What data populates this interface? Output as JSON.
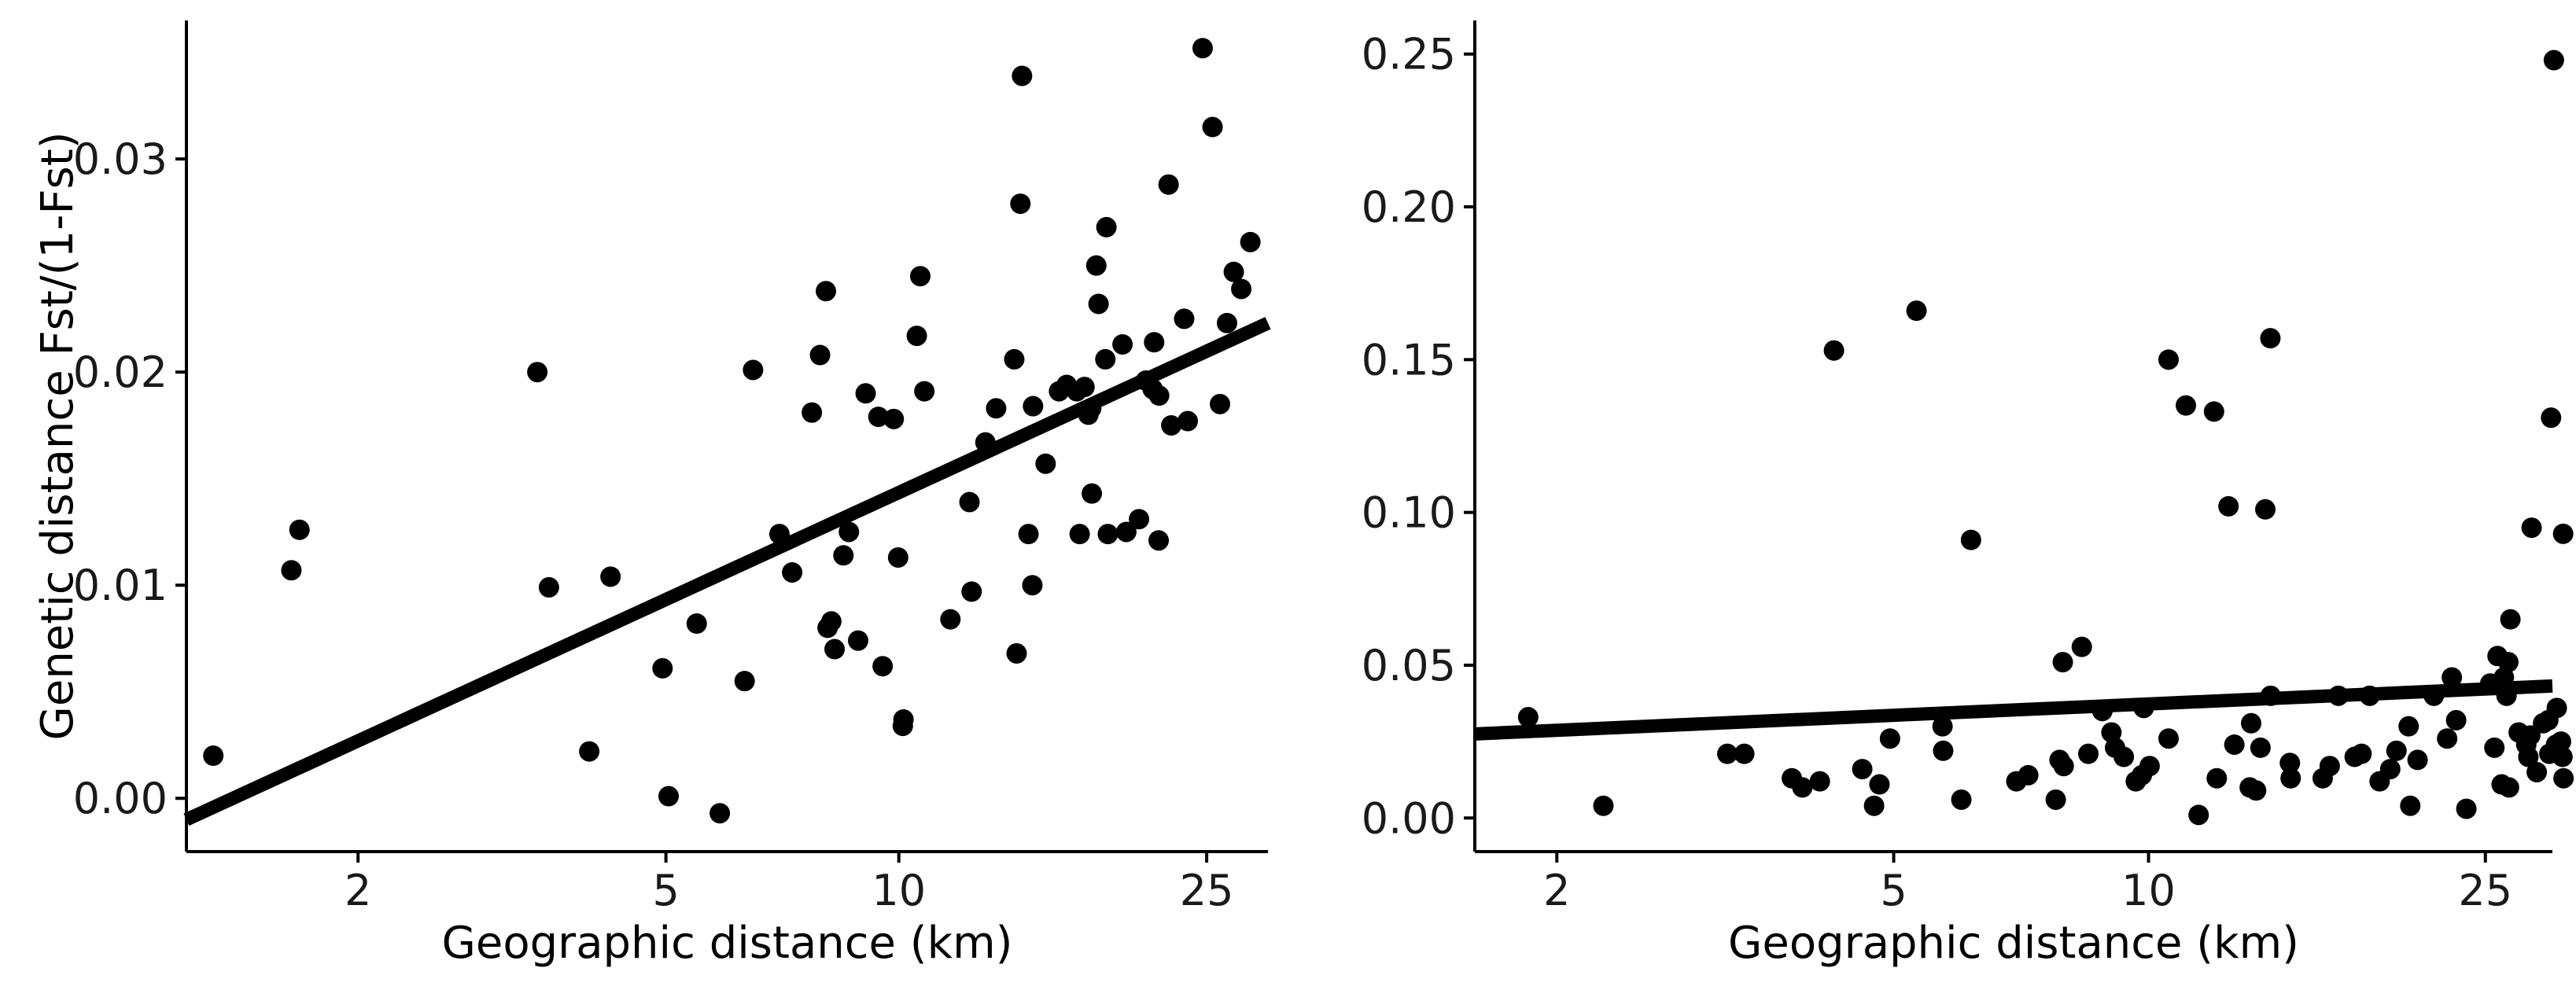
{
  "colors": {
    "point": "#000000",
    "line": "#000000",
    "background": "#ffffff"
  },
  "chart_data": [
    {
      "type": "scatter",
      "x_scale": "log",
      "xlabel": "Geographic distance (km)",
      "ylabel": "Genetic distance Fst/(1-Fst)",
      "xlim": [
        1.2,
        30
      ],
      "ylim": [
        -0.0025,
        0.0365
      ],
      "x_ticks": [
        2,
        5,
        10,
        25
      ],
      "x_tick_labels": [
        "2",
        "5",
        "10",
        "25"
      ],
      "y_ticks": [
        0,
        0.01,
        0.02,
        0.03
      ],
      "y_tick_labels": [
        "0.00",
        "0.01",
        "0.02",
        "0.03"
      ],
      "grid": false,
      "regression_line": {
        "x": [
          1.2,
          30
        ],
        "y": [
          -0.001,
          0.0223
        ]
      },
      "points": [
        [
          1.3,
          0.002
        ],
        [
          1.64,
          0.0107
        ],
        [
          1.68,
          0.0126
        ],
        [
          3.41,
          0.02
        ],
        [
          3.53,
          0.0099
        ],
        [
          3.98,
          0.0022
        ],
        [
          4.24,
          0.0104
        ],
        [
          4.95,
          0.0061
        ],
        [
          5.04,
          0.0001
        ],
        [
          5.48,
          0.0082
        ],
        [
          5.87,
          -0.0007
        ],
        [
          6.32,
          0.0055
        ],
        [
          6.48,
          0.0201
        ],
        [
          7.01,
          0.0124
        ],
        [
          7.28,
          0.0106
        ],
        [
          7.72,
          0.0181
        ],
        [
          7.91,
          0.0208
        ],
        [
          8.05,
          0.0238
        ],
        [
          8.09,
          0.008
        ],
        [
          8.18,
          0.0083
        ],
        [
          8.26,
          0.007
        ],
        [
          8.48,
          0.0114
        ],
        [
          8.62,
          0.0125
        ],
        [
          8.86,
          0.0074
        ],
        [
          9.06,
          0.019
        ],
        [
          9.41,
          0.0179
        ],
        [
          9.53,
          0.0062
        ],
        [
          9.85,
          0.0178
        ],
        [
          9.98,
          0.0113
        ],
        [
          10.12,
          0.0034
        ],
        [
          10.14,
          0.0037
        ],
        [
          10.55,
          0.0217
        ],
        [
          10.66,
          0.0245
        ],
        [
          10.79,
          0.0191
        ],
        [
          11.66,
          0.0084
        ],
        [
          12.34,
          0.0139
        ],
        [
          12.42,
          0.0097
        ],
        [
          12.94,
          0.0167
        ],
        [
          13.36,
          0.0183
        ],
        [
          14.1,
          0.0206
        ],
        [
          14.2,
          0.0068
        ],
        [
          14.36,
          0.0279
        ],
        [
          14.43,
          0.0339
        ],
        [
          14.71,
          0.0124
        ],
        [
          14.88,
          0.01
        ],
        [
          14.91,
          0.0184
        ],
        [
          15.48,
          0.0157
        ],
        [
          16.11,
          0.0191
        ],
        [
          16.48,
          0.0194
        ],
        [
          16.98,
          0.0191
        ],
        [
          17.13,
          0.0124
        ],
        [
          17.38,
          0.0193
        ],
        [
          17.58,
          0.018
        ],
        [
          17.73,
          0.0183
        ],
        [
          17.76,
          0.0143
        ],
        [
          18.0,
          0.025
        ],
        [
          18.12,
          0.0232
        ],
        [
          18.49,
          0.0206
        ],
        [
          18.55,
          0.0268
        ],
        [
          18.63,
          0.0124
        ],
        [
          19.46,
          0.0213
        ],
        [
          19.68,
          0.0125
        ],
        [
          20.44,
          0.0131
        ],
        [
          20.86,
          0.0196
        ],
        [
          21.29,
          0.0192
        ],
        [
          21.38,
          0.0214
        ],
        [
          21.67,
          0.0121
        ],
        [
          21.7,
          0.0189
        ],
        [
          22.32,
          0.0288
        ],
        [
          22.5,
          0.0175
        ],
        [
          23.38,
          0.0225
        ],
        [
          23.63,
          0.0177
        ],
        [
          24.7,
          0.0352
        ],
        [
          25.44,
          0.0315
        ],
        [
          26.01,
          0.0185
        ],
        [
          26.56,
          0.0223
        ],
        [
          27.1,
          0.0247
        ],
        [
          27.71,
          0.0239
        ],
        [
          28.47,
          0.0261
        ]
      ]
    },
    {
      "type": "scatter",
      "x_scale": "log",
      "xlabel": "Geographic distance (km)",
      "ylabel": "",
      "xlim": [
        1.6,
        30
      ],
      "ylim": [
        -0.011,
        0.261
      ],
      "x_ticks": [
        2,
        5,
        10,
        25
      ],
      "x_tick_labels": [
        "2",
        "5",
        "10",
        "25"
      ],
      "y_ticks": [
        0,
        0.05,
        0.1,
        0.15,
        0.2,
        0.25
      ],
      "y_tick_labels": [
        "0.00",
        "0.05",
        "0.10",
        "0.15",
        "0.20",
        "0.25"
      ],
      "grid": false,
      "regression_line": {
        "x": [
          1.6,
          30
        ],
        "y": [
          0.0275,
          0.0432
        ]
      },
      "points": [
        [
          1.85,
          0.033
        ],
        [
          2.27,
          0.004
        ],
        [
          3.18,
          0.021
        ],
        [
          3.33,
          0.021
        ],
        [
          3.79,
          0.013
        ],
        [
          3.9,
          0.01
        ],
        [
          4.09,
          0.012
        ],
        [
          4.25,
          0.153
        ],
        [
          4.59,
          0.016
        ],
        [
          4.74,
          0.004
        ],
        [
          4.81,
          0.011
        ],
        [
          4.95,
          0.026
        ],
        [
          5.32,
          0.166
        ],
        [
          5.71,
          0.03
        ],
        [
          5.72,
          0.022
        ],
        [
          6.01,
          0.006
        ],
        [
          6.17,
          0.091
        ],
        [
          6.98,
          0.012
        ],
        [
          7.21,
          0.014
        ],
        [
          7.77,
          0.006
        ],
        [
          7.85,
          0.019
        ],
        [
          7.92,
          0.051
        ],
        [
          7.94,
          0.017
        ],
        [
          8.34,
          0.056
        ],
        [
          8.49,
          0.021
        ],
        [
          8.82,
          0.035
        ],
        [
          9.04,
          0.028
        ],
        [
          9.13,
          0.023
        ],
        [
          9.35,
          0.02
        ],
        [
          9.66,
          0.012
        ],
        [
          9.82,
          0.014
        ],
        [
          9.87,
          0.036
        ],
        [
          10.03,
          0.017
        ],
        [
          10.56,
          0.026
        ],
        [
          10.56,
          0.15
        ],
        [
          11.07,
          0.135
        ],
        [
          11.46,
          0.001
        ],
        [
          11.95,
          0.133
        ],
        [
          12.04,
          0.013
        ],
        [
          12.43,
          0.102
        ],
        [
          12.63,
          0.024
        ],
        [
          13.17,
          0.01
        ],
        [
          13.22,
          0.031
        ],
        [
          13.4,
          0.009
        ],
        [
          13.56,
          0.023
        ],
        [
          13.74,
          0.101
        ],
        [
          13.93,
          0.157
        ],
        [
          13.94,
          0.04
        ],
        [
          14.69,
          0.018
        ],
        [
          14.72,
          0.013
        ],
        [
          16.06,
          0.013
        ],
        [
          16.37,
          0.017
        ],
        [
          16.76,
          0.04
        ],
        [
          17.52,
          0.02
        ],
        [
          17.85,
          0.021
        ],
        [
          18.25,
          0.04
        ],
        [
          18.75,
          0.012
        ],
        [
          19.3,
          0.016
        ],
        [
          19.63,
          0.022
        ],
        [
          20.29,
          0.03
        ],
        [
          20.38,
          0.004
        ],
        [
          20.79,
          0.019
        ],
        [
          21.73,
          0.04
        ],
        [
          22.53,
          0.026
        ],
        [
          22.82,
          0.046
        ],
        [
          23.09,
          0.032
        ],
        [
          23.74,
          0.003
        ],
        [
          25.33,
          0.044
        ],
        [
          25.62,
          0.023
        ],
        [
          25.84,
          0.053
        ],
        [
          26.13,
          0.011
        ],
        [
          26.29,
          0.046
        ],
        [
          26.48,
          0.04
        ],
        [
          26.61,
          0.051
        ],
        [
          26.66,
          0.01
        ],
        [
          26.76,
          0.065
        ],
        [
          27.37,
          0.028
        ],
        [
          27.94,
          0.024
        ],
        [
          28.1,
          0.02
        ],
        [
          28.25,
          0.027
        ],
        [
          28.35,
          0.095
        ],
        [
          28.75,
          0.015
        ],
        [
          29.25,
          0.031
        ],
        [
          29.67,
          0.032
        ],
        [
          29.75,
          0.021
        ],
        [
          29.89,
          0.131
        ],
        [
          30.12,
          0.248
        ],
        [
          30.3,
          0.024
        ],
        [
          30.36,
          0.036
        ],
        [
          30.71,
          0.025
        ],
        [
          30.83,
          0.02
        ],
        [
          30.89,
          0.093
        ],
        [
          30.92,
          0.013
        ]
      ]
    }
  ]
}
